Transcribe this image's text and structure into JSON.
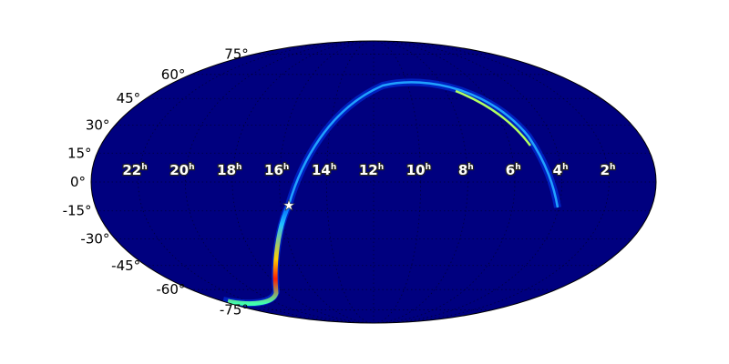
{
  "chart_data": {
    "type": "heatmap",
    "projection": "mollweide",
    "title": "",
    "ra_tick_labels": [
      "22",
      "20",
      "18",
      "16",
      "14",
      "12",
      "10",
      "8",
      "6",
      "4",
      "2"
    ],
    "ra_unit": "h",
    "dec_tick_labels": [
      "75°",
      "60°",
      "45°",
      "30°",
      "15°",
      "0°",
      "-15°",
      "-30°",
      "-45°",
      "-60°",
      "-75°"
    ],
    "dec_values": [
      75,
      60,
      45,
      30,
      15,
      0,
      -15,
      -30,
      -45,
      -60,
      -75
    ],
    "grid": true,
    "colormap": "jet",
    "background_color": "#00007f",
    "marker": {
      "symbol": "star",
      "ra_hours": 15.5,
      "dec_deg": -16,
      "color": "#ffffff"
    },
    "probability_arc": [
      {
        "ra_hours": 17.7,
        "dec_deg": -75,
        "level": 0.2
      },
      {
        "ra_hours": 15.9,
        "dec_deg": -68,
        "level": 0.3
      },
      {
        "ra_hours": 15.9,
        "dec_deg": -50,
        "level": 1.0
      },
      {
        "ra_hours": 15.7,
        "dec_deg": -35,
        "level": 0.6
      },
      {
        "ra_hours": 15.5,
        "dec_deg": -16,
        "level": 0.3
      },
      {
        "ra_hours": 14.7,
        "dec_deg": 15,
        "level": 0.15
      },
      {
        "ra_hours": 12.5,
        "dec_deg": 42,
        "level": 0.2
      },
      {
        "ra_hours": 9.8,
        "dec_deg": 47,
        "level": 0.3
      },
      {
        "ra_hours": 7.0,
        "dec_deg": 40,
        "level": 0.45
      },
      {
        "ra_hours": 5.2,
        "dec_deg": 20,
        "level": 0.35
      },
      {
        "ra_hours": 4.2,
        "dec_deg": 0,
        "level": 0.25
      },
      {
        "ra_hours": 3.9,
        "dec_deg": -15,
        "level": 0.15
      }
    ]
  }
}
